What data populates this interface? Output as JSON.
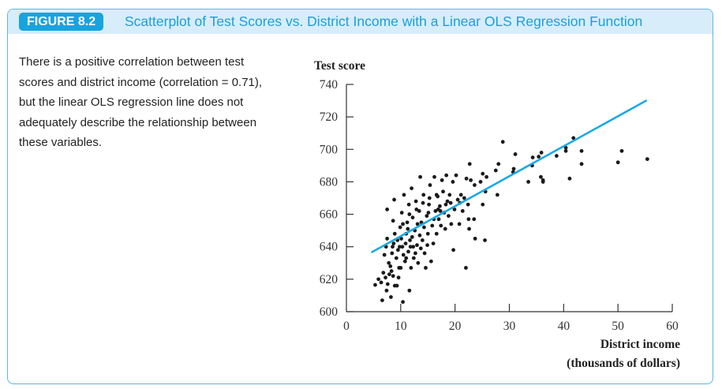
{
  "figure": {
    "badge": "FIGURE 8.2",
    "title": "Scatterplot of Test Scores vs. District Income with a Linear OLS Regression Function",
    "description": "There is a positive correlation between test scores and district income (correlation = 0.71), but the linear OLS regression line does not adequately describe the relationship between these variables."
  },
  "colors": {
    "accent": "#18a3e0",
    "line": "#1aa9e6",
    "points": "#1a1a1a"
  },
  "chart_data": {
    "type": "scatter",
    "ylabel": "Test score",
    "xlabel": "District income",
    "xlabel2": "(thousands of dollars)",
    "xlim": [
      0,
      60
    ],
    "ylim": [
      600,
      740
    ],
    "xticks": [
      "0",
      "10",
      "20",
      "30",
      "40",
      "50",
      "60"
    ],
    "yticks": [
      "600",
      "620",
      "640",
      "660",
      "680",
      "700",
      "720",
      "740"
    ],
    "regression": {
      "x": [
        4.6,
        55.3
      ],
      "y": [
        636.5,
        730.2
      ]
    },
    "points": [
      [
        28.8,
        704.6
      ],
      [
        41.8,
        707
      ],
      [
        50.7,
        699
      ],
      [
        55.4,
        694
      ],
      [
        50.0,
        692
      ],
      [
        43.3,
        699
      ],
      [
        43.3,
        691
      ],
      [
        41.1,
        682
      ],
      [
        40.4,
        699
      ],
      [
        40.4,
        701
      ],
      [
        38.7,
        696
      ],
      [
        36.2,
        680
      ],
      [
        36.2,
        681
      ],
      [
        35.8,
        683
      ],
      [
        35.9,
        698
      ],
      [
        35.4,
        695.5
      ],
      [
        34.3,
        695
      ],
      [
        34.2,
        690
      ],
      [
        33.5,
        680
      ],
      [
        31.1,
        697
      ],
      [
        30.8,
        688
      ],
      [
        30.7,
        686
      ],
      [
        28.0,
        691
      ],
      [
        27.5,
        687
      ],
      [
        27.8,
        672
      ],
      [
        25.6,
        674
      ],
      [
        25.8,
        683
      ],
      [
        25.1,
        685
      ],
      [
        24.7,
        680
      ],
      [
        25.1,
        666
      ],
      [
        25.5,
        644
      ],
      [
        23.7,
        645
      ],
      [
        23.5,
        657
      ],
      [
        22.6,
        651
      ],
      [
        22.5,
        657
      ],
      [
        22.7,
        691
      ],
      [
        22.9,
        681
      ],
      [
        22.0,
        627
      ],
      [
        19.7,
        638
      ],
      [
        11.6,
        613
      ],
      [
        10.4,
        606
      ],
      [
        6.6,
        607
      ],
      [
        8.2,
        609
      ],
      [
        7.5,
        663
      ],
      [
        5.3,
        616.5
      ],
      [
        5.9,
        620
      ],
      [
        6.4,
        618
      ],
      [
        6.8,
        624
      ],
      [
        7.2,
        621
      ],
      [
        7.4,
        613
      ],
      [
        7.6,
        617
      ],
      [
        7.9,
        623
      ],
      [
        8.3,
        625
      ],
      [
        8.6,
        622
      ],
      [
        8.9,
        616
      ],
      [
        9.3,
        616
      ],
      [
        9.6,
        621
      ],
      [
        7.0,
        635
      ],
      [
        7.3,
        640
      ],
      [
        7.5,
        645
      ],
      [
        7.8,
        630
      ],
      [
        8.1,
        628
      ],
      [
        8.4,
        636
      ],
      [
        8.7,
        642
      ],
      [
        8.9,
        648
      ],
      [
        8.6,
        656
      ],
      [
        8.8,
        669
      ],
      [
        9.2,
        633
      ],
      [
        9.5,
        638
      ],
      [
        9.7,
        627
      ],
      [
        9.9,
        652
      ],
      [
        10.1,
        645
      ],
      [
        10.3,
        640
      ],
      [
        10.5,
        635
      ],
      [
        10.2,
        661
      ],
      [
        10.6,
        672
      ],
      [
        10.8,
        631
      ],
      [
        11.0,
        648
      ],
      [
        11.2,
        655
      ],
      [
        11.4,
        637
      ],
      [
        11.5,
        666
      ],
      [
        11.7,
        644
      ],
      [
        11.9,
        627
      ],
      [
        12.0,
        676
      ],
      [
        12.2,
        658
      ],
      [
        12.4,
        633
      ],
      [
        12.6,
        650
      ],
      [
        12.8,
        668
      ],
      [
        13.0,
        641
      ],
      [
        13.2,
        630
      ],
      [
        13.4,
        662
      ],
      [
        13.6,
        683
      ],
      [
        13.8,
        655
      ],
      [
        14.0,
        644
      ],
      [
        14.2,
        672
      ],
      [
        14.4,
        636
      ],
      [
        14.6,
        627
      ],
      [
        14.8,
        659
      ],
      [
        15.0,
        648
      ],
      [
        15.2,
        666
      ],
      [
        15.4,
        678
      ],
      [
        15.6,
        631
      ],
      [
        15.8,
        653
      ],
      [
        16.0,
        642
      ],
      [
        16.2,
        683
      ],
      [
        16.4,
        662
      ],
      [
        16.6,
        648
      ],
      [
        16.8,
        671
      ],
      [
        17.0,
        657
      ],
      [
        17.2,
        665
      ],
      [
        17.4,
        653
      ],
      [
        17.6,
        681
      ],
      [
        17.8,
        674
      ],
      [
        18.0,
        661
      ],
      [
        18.2,
        651
      ],
      [
        18.4,
        684
      ],
      [
        18.6,
        668
      ],
      [
        18.8,
        659
      ],
      [
        19.0,
        672
      ],
      [
        19.3,
        654
      ],
      [
        19.6,
        680
      ],
      [
        19.9,
        663
      ],
      [
        20.2,
        684
      ],
      [
        20.5,
        669
      ],
      [
        20.8,
        654
      ],
      [
        21.1,
        672
      ],
      [
        21.4,
        662
      ],
      [
        21.7,
        670
      ],
      [
        22.1,
        682
      ],
      [
        22.4,
        666
      ],
      [
        11.3,
        651
      ],
      [
        12.1,
        646
      ],
      [
        13.1,
        654
      ],
      [
        10.9,
        642
      ],
      [
        9.8,
        640
      ],
      [
        11.8,
        640
      ],
      [
        12.7,
        636
      ],
      [
        13.5,
        647
      ],
      [
        14.3,
        652
      ],
      [
        15.1,
        661
      ],
      [
        16.1,
        657
      ],
      [
        17.3,
        662
      ],
      [
        18.3,
        666
      ],
      [
        10.4,
        654
      ],
      [
        11.6,
        660
      ],
      [
        12.9,
        663
      ],
      [
        14.1,
        667
      ],
      [
        15.3,
        670
      ],
      [
        16.6,
        672
      ],
      [
        13.7,
        639
      ],
      [
        10.0,
        627
      ],
      [
        11.0,
        633
      ],
      [
        12.3,
        640
      ],
      [
        9.4,
        644
      ],
      [
        8.5,
        640
      ],
      [
        14.9,
        641
      ],
      [
        16.9,
        663
      ],
      [
        19.2,
        667
      ],
      [
        20.9,
        667
      ],
      [
        23.6,
        678
      ]
    ]
  }
}
